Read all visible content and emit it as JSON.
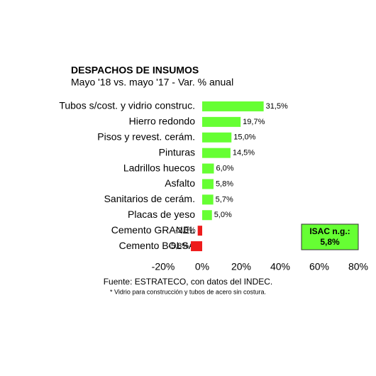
{
  "chart_data": {
    "type": "bar",
    "orientation": "horizontal",
    "title": "DESPACHOS DE INSUMOS",
    "subtitle": "Mayo '18 vs. mayo '17 - Var. % anual",
    "categories": [
      "Tubos s/cost. y vidrio construc.",
      "Hierro redondo",
      "Pisos y revest. cerám.",
      "Pinturas",
      "Ladrillos huecos",
      "Asfalto",
      "Sanitarios de cerám.",
      "Placas de yeso",
      "Cemento GRANEL",
      "Cemento BOLSA"
    ],
    "values": [
      31.5,
      19.7,
      15.0,
      14.5,
      6.0,
      5.8,
      5.7,
      5.0,
      -2.3,
      -5.8
    ],
    "value_labels": [
      "31,5%",
      "19,7%",
      "15,0%",
      "14,5%",
      "6,0%",
      "5,8%",
      "5,7%",
      "5,0%",
      "-2,3%",
      "-5,8%"
    ],
    "positive_color": "#66ff33",
    "negative_color": "#ee1c1c",
    "xlim": [
      -20,
      80
    ],
    "xticks": [
      {
        "value": -20,
        "label": "-20%"
      },
      {
        "value": 0,
        "label": "0%"
      },
      {
        "value": 20,
        "label": "20%"
      },
      {
        "value": 40,
        "label": "40%"
      },
      {
        "value": 60,
        "label": "60%"
      },
      {
        "value": 80,
        "label": "80%"
      }
    ],
    "grid": false,
    "isac_box": {
      "title": "ISAC n.g.:",
      "value": "5,8%"
    },
    "source": "Fuente: ESTRATECO, con datos del INDEC.",
    "footnote": "* Vidrio para construcción y tubos de acero sin costura."
  }
}
